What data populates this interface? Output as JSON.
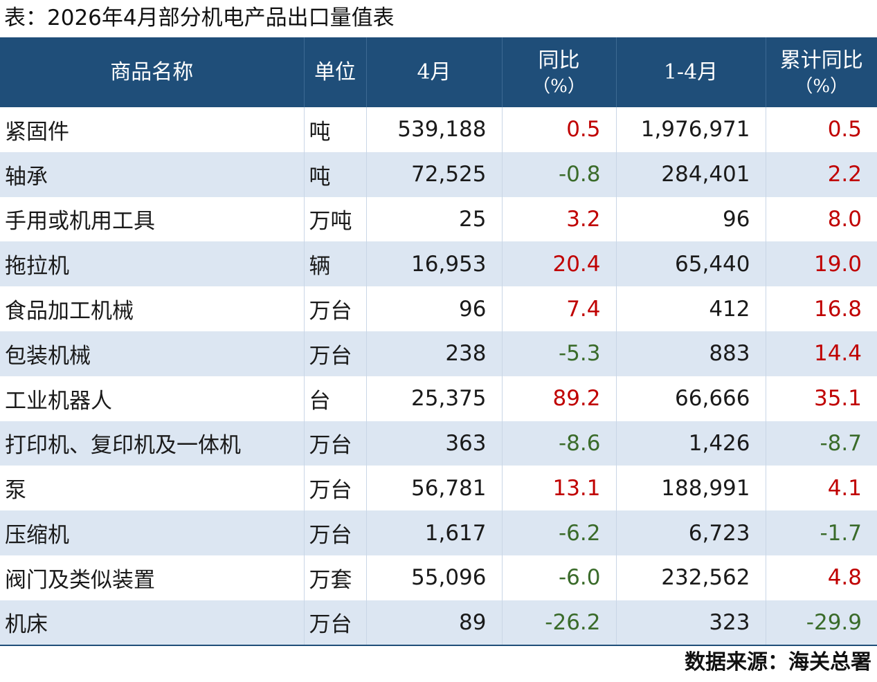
{
  "title": "表：2026年4月部分机电产品出口量值表",
  "headers": {
    "name": "商品名称",
    "unit": "单位",
    "april": "4月",
    "yoy_line1": "同比",
    "yoy_line2": "（%）",
    "ytd": "1-4月",
    "ytd_yoy_line1": "累计同比",
    "ytd_yoy_line2": "（%）"
  },
  "rows": [
    {
      "name": "紧固件",
      "unit": "吨",
      "april": "539,188",
      "yoy": "0.5",
      "ytd": "1,976,971",
      "ytd_yoy": "0.5"
    },
    {
      "name": "轴承",
      "unit": "吨",
      "april": "72,525",
      "yoy": "-0.8",
      "ytd": "284,401",
      "ytd_yoy": "2.2"
    },
    {
      "name": "手用或机用工具",
      "unit": "万吨",
      "april": "25",
      "yoy": "3.2",
      "ytd": "96",
      "ytd_yoy": "8.0"
    },
    {
      "name": "拖拉机",
      "unit": "辆",
      "april": "16,953",
      "yoy": "20.4",
      "ytd": "65,440",
      "ytd_yoy": "19.0"
    },
    {
      "name": "食品加工机械",
      "unit": "万台",
      "april": "96",
      "yoy": "7.4",
      "ytd": "412",
      "ytd_yoy": "16.8"
    },
    {
      "name": "包装机械",
      "unit": "万台",
      "april": "238",
      "yoy": "-5.3",
      "ytd": "883",
      "ytd_yoy": "14.4"
    },
    {
      "name": "工业机器人",
      "unit": "台",
      "april": "25,375",
      "yoy": "89.2",
      "ytd": "66,666",
      "ytd_yoy": "35.1"
    },
    {
      "name": "打印机、复印机及一体机",
      "unit": "万台",
      "april": "363",
      "yoy": "-8.6",
      "ytd": "1,426",
      "ytd_yoy": "-8.7"
    },
    {
      "name": "泵",
      "unit": "万台",
      "april": "56,781",
      "yoy": "13.1",
      "ytd": "188,991",
      "ytd_yoy": "4.1"
    },
    {
      "name": "压缩机",
      "unit": "万台",
      "april": "1,617",
      "yoy": "-6.2",
      "ytd": "6,723",
      "ytd_yoy": "-1.7"
    },
    {
      "name": "阀门及类似装置",
      "unit": "万套",
      "april": "55,096",
      "yoy": "-6.0",
      "ytd": "232,562",
      "ytd_yoy": "4.8"
    },
    {
      "name": "机床",
      "unit": "万台",
      "april": "89",
      "yoy": "-26.2",
      "ytd": "323",
      "ytd_yoy": "-29.9"
    }
  ],
  "colors": {
    "header_bg": "#1f4e79",
    "stripe": "#dce6f2",
    "positive": "#c00000",
    "negative": "#3a6b2a"
  },
  "source": "数据来源：海关总署"
}
